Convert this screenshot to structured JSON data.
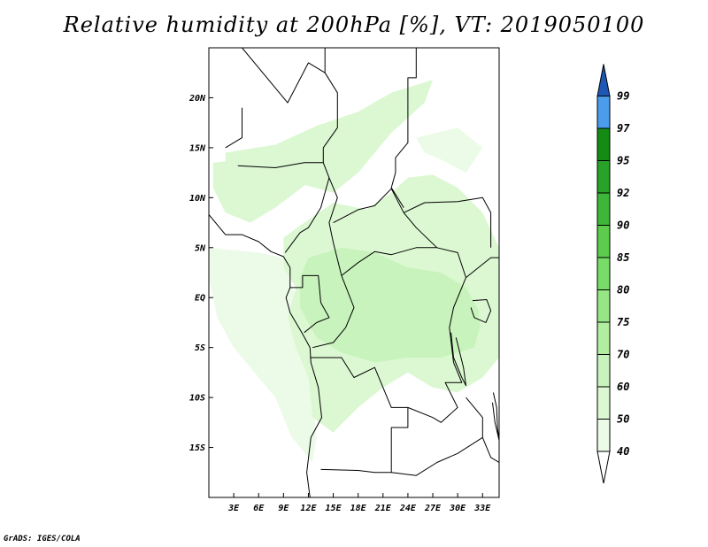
{
  "title": "Relative humidity at 200hPa [%], VT: 2019050100",
  "credit": "GrADS: IGES/COLA",
  "colors": {
    "land_border": "#000000",
    "frame": "#000000",
    "background": "#ffffff"
  },
  "chart_data": {
    "type": "heatmap",
    "variable": "Relative humidity at 200hPa",
    "units": "%",
    "valid_time": "2019050100",
    "lon_range": [
      0,
      35
    ],
    "lat_range": [
      -20,
      25
    ],
    "x_tick_labels": [
      {
        "lon": 3,
        "label": "3E"
      },
      {
        "lon": 6,
        "label": "6E"
      },
      {
        "lon": 9,
        "label": "9E"
      },
      {
        "lon": 12,
        "label": "12E"
      },
      {
        "lon": 15,
        "label": "15E"
      },
      {
        "lon": 18,
        "label": "18E"
      },
      {
        "lon": 21,
        "label": "21E"
      },
      {
        "lon": 24,
        "label": "24E"
      },
      {
        "lon": 27,
        "label": "27E"
      },
      {
        "lon": 30,
        "label": "30E"
      },
      {
        "lon": 33,
        "label": "33E"
      }
    ],
    "y_tick_labels": [
      {
        "lat": 20,
        "label": "20N"
      },
      {
        "lat": 15,
        "label": "15N"
      },
      {
        "lat": 10,
        "label": "10N"
      },
      {
        "lat": 5,
        "label": "5N"
      },
      {
        "lat": 0,
        "label": "EQ"
      },
      {
        "lat": -5,
        "label": "5S"
      },
      {
        "lat": -10,
        "label": "10S"
      },
      {
        "lat": -15,
        "label": "15S"
      }
    ],
    "colorbar": {
      "levels": [
        {
          "label": "40",
          "color": "#ecfbe8"
        },
        {
          "label": "50",
          "color": "#dcf8d2"
        },
        {
          "label": "60",
          "color": "#c8f3bc"
        },
        {
          "label": "70",
          "color": "#b1eea0"
        },
        {
          "label": "75",
          "color": "#96e685"
        },
        {
          "label": "80",
          "color": "#78dc68"
        },
        {
          "label": "85",
          "color": "#5ccc4c"
        },
        {
          "label": "90",
          "color": "#3eb738"
        },
        {
          "label": "92",
          "color": "#28a228"
        },
        {
          "label": "95",
          "color": "#148c14"
        },
        {
          "label": "97",
          "color": "#4c9cec"
        },
        {
          "label": "99",
          "color": "#2f78d8"
        }
      ],
      "top_color": "#1c58b4",
      "bottom_color": "#ffffff"
    },
    "humid_regions": [
      {
        "name": "sahel-band",
        "level": "50",
        "points": [
          [
            2,
            14.5
          ],
          [
            8,
            15.3
          ],
          [
            13,
            17.2
          ],
          [
            18,
            18.6
          ],
          [
            22,
            20.5
          ],
          [
            27,
            21.8
          ],
          [
            26,
            19.5
          ],
          [
            22,
            16.5
          ],
          [
            18,
            12.5
          ],
          [
            15,
            10.5
          ],
          [
            11,
            11.4
          ],
          [
            6,
            12.2
          ],
          [
            2,
            13.2
          ]
        ]
      },
      {
        "name": "west-africa",
        "level": "50",
        "points": [
          [
            0.5,
            13.5
          ],
          [
            4,
            13.8
          ],
          [
            8,
            13.9
          ],
          [
            11,
            14.8
          ],
          [
            13,
            16
          ],
          [
            12,
            11.5
          ],
          [
            8,
            9
          ],
          [
            5,
            7.5
          ],
          [
            2,
            8.5
          ],
          [
            0.5,
            11
          ]
        ]
      },
      {
        "name": "gulf-of-guinea",
        "level": "40",
        "points": [
          [
            0,
            5
          ],
          [
            6,
            4.5
          ],
          [
            9,
            4
          ],
          [
            10,
            1
          ],
          [
            12,
            -2
          ],
          [
            13,
            -6
          ],
          [
            12.5,
            -10
          ],
          [
            13,
            -14
          ],
          [
            12.5,
            -16.5
          ],
          [
            10,
            -14
          ],
          [
            8,
            -10
          ],
          [
            6,
            -8
          ],
          [
            3,
            -5
          ],
          [
            1,
            -2
          ],
          [
            0,
            2
          ]
        ]
      },
      {
        "name": "central-africa",
        "level": "50",
        "points": [
          [
            9,
            6
          ],
          [
            12,
            7.8
          ],
          [
            15,
            9.5
          ],
          [
            19,
            8.8
          ],
          [
            22,
            10.5
          ],
          [
            24,
            12
          ],
          [
            27,
            12.3
          ],
          [
            30,
            11
          ],
          [
            33,
            8.5
          ],
          [
            35,
            5
          ],
          [
            35,
            -6
          ],
          [
            33,
            -8
          ],
          [
            30,
            -9.5
          ],
          [
            27,
            -9
          ],
          [
            24,
            -7.5
          ],
          [
            21,
            -9
          ],
          [
            18,
            -11
          ],
          [
            15,
            -13.5
          ],
          [
            12.5,
            -12
          ],
          [
            12,
            -8
          ],
          [
            10.5,
            -5
          ],
          [
            9.5,
            -2
          ],
          [
            10.5,
            1
          ],
          [
            9,
            3
          ]
        ]
      },
      {
        "name": "congo-core",
        "level": "60",
        "points": [
          [
            12,
            4
          ],
          [
            16,
            5
          ],
          [
            20,
            4.5
          ],
          [
            24,
            3
          ],
          [
            28,
            2.5
          ],
          [
            31,
            1
          ],
          [
            33,
            -2
          ],
          [
            32,
            -5
          ],
          [
            28,
            -6
          ],
          [
            24,
            -6
          ],
          [
            20,
            -6.5
          ],
          [
            16,
            -5.5
          ],
          [
            13,
            -4
          ],
          [
            11,
            -1
          ],
          [
            11,
            2
          ]
        ]
      },
      {
        "name": "east-highlands",
        "level": "50",
        "points": [
          [
            33,
            1
          ],
          [
            35,
            0
          ],
          [
            35,
            -6
          ],
          [
            33.5,
            -5
          ],
          [
            32.5,
            -2
          ]
        ]
      },
      {
        "name": "north-dry-patch",
        "level": "40",
        "points": [
          [
            25,
            16
          ],
          [
            30,
            17
          ],
          [
            33,
            15
          ],
          [
            31,
            12.5
          ],
          [
            28,
            13.8
          ],
          [
            26,
            14.5
          ]
        ]
      }
    ],
    "borders": [
      {
        "name": "coastline-west",
        "points": [
          [
            0,
            8.3
          ],
          [
            2,
            6.3
          ],
          [
            4,
            6.3
          ],
          [
            6,
            5.6
          ],
          [
            7.5,
            4.6
          ],
          [
            9,
            4.1
          ],
          [
            9.8,
            3
          ],
          [
            9.8,
            1
          ],
          [
            9.3,
            0
          ],
          [
            9.8,
            -1.5
          ],
          [
            11.2,
            -3.5
          ],
          [
            12.2,
            -5
          ],
          [
            12.3,
            -6.5
          ],
          [
            13.2,
            -9
          ],
          [
            13.6,
            -12
          ],
          [
            12.3,
            -14
          ],
          [
            11.8,
            -17.5
          ],
          [
            12.2,
            -20
          ]
        ]
      },
      {
        "name": "sahara-lines",
        "points": [
          [
            4,
            25
          ],
          [
            9.5,
            19.5
          ],
          [
            12,
            23.5
          ],
          [
            14,
            22.5
          ],
          [
            14,
            25
          ]
        ]
      },
      {
        "name": "algeria-niger",
        "points": [
          [
            4,
            19
          ],
          [
            4,
            16
          ],
          [
            2,
            15
          ]
        ]
      },
      {
        "name": "niger-chad",
        "points": [
          [
            14,
            22.5
          ],
          [
            15.5,
            20.5
          ],
          [
            15.5,
            17
          ],
          [
            13.8,
            15
          ],
          [
            13.8,
            13.5
          ]
        ]
      },
      {
        "name": "chad-sudan",
        "points": [
          [
            24,
            19.5
          ],
          [
            24,
            15.5
          ],
          [
            22.5,
            14
          ],
          [
            22.5,
            12.5
          ],
          [
            22,
            11
          ],
          [
            23.5,
            9
          ]
        ]
      },
      {
        "name": "sudan-north",
        "points": [
          [
            24,
            19.5
          ],
          [
            24,
            22
          ],
          [
            25,
            22
          ],
          [
            25,
            25
          ]
        ]
      },
      {
        "name": "nigeria-north",
        "points": [
          [
            3.5,
            13.2
          ],
          [
            8,
            13
          ],
          [
            11.5,
            13.5
          ],
          [
            13.8,
            13.5
          ],
          [
            14.5,
            12
          ]
        ]
      },
      {
        "name": "nigeria-cameroon",
        "points": [
          [
            14.5,
            12
          ],
          [
            13.5,
            9
          ],
          [
            12,
            7
          ],
          [
            11,
            6.5
          ],
          [
            9.2,
            4.5
          ]
        ]
      },
      {
        "name": "cameroon-car",
        "points": [
          [
            14.5,
            12
          ],
          [
            15.5,
            10
          ],
          [
            14.5,
            7.5
          ],
          [
            15,
            5.5
          ],
          [
            16,
            2.2
          ]
        ]
      },
      {
        "name": "car-congo",
        "points": [
          [
            16,
            2.2
          ],
          [
            18,
            3.5
          ],
          [
            20,
            4.6
          ],
          [
            22,
            4.3
          ],
          [
            25,
            5
          ],
          [
            27.5,
            5
          ]
        ]
      },
      {
        "name": "car-sudan",
        "points": [
          [
            15,
            7.5
          ],
          [
            18,
            8.8
          ],
          [
            20,
            9.2
          ],
          [
            22,
            10.9
          ],
          [
            23.5,
            8.5
          ],
          [
            25,
            7
          ],
          [
            27.5,
            5
          ]
        ]
      },
      {
        "name": "south-sudan",
        "points": [
          [
            23.5,
            8.5
          ],
          [
            26,
            9.5
          ],
          [
            30,
            9.6
          ],
          [
            33,
            10
          ],
          [
            34,
            8.5
          ],
          [
            34,
            5
          ]
        ]
      },
      {
        "name": "gabon-congo",
        "points": [
          [
            9.8,
            1
          ],
          [
            11.3,
            1
          ],
          [
            11.3,
            2.2
          ],
          [
            13.2,
            2.2
          ],
          [
            13.5,
            -0.5
          ],
          [
            14.5,
            -2
          ],
          [
            13,
            -2.5
          ],
          [
            11.5,
            -3.5
          ]
        ]
      },
      {
        "name": "congo-drc",
        "points": [
          [
            16,
            2.2
          ],
          [
            17.5,
            -1
          ],
          [
            16.5,
            -3
          ],
          [
            15,
            -4.5
          ],
          [
            12.5,
            -5
          ]
        ]
      },
      {
        "name": "drc-angola",
        "points": [
          [
            12.2,
            -6
          ],
          [
            16,
            -6
          ],
          [
            17.5,
            -8
          ],
          [
            20,
            -7
          ],
          [
            22,
            -11
          ],
          [
            24,
            -11
          ],
          [
            24,
            -13
          ],
          [
            22,
            -13
          ],
          [
            22,
            -17.5
          ],
          [
            20,
            -17.5
          ],
          [
            18,
            -17.3
          ],
          [
            13.5,
            -17.2
          ]
        ]
      },
      {
        "name": "drc-east",
        "points": [
          [
            27.5,
            5
          ],
          [
            30,
            4.5
          ],
          [
            31,
            2
          ],
          [
            29.5,
            -1
          ],
          [
            29,
            -3
          ],
          [
            29.5,
            -6.5
          ],
          [
            30.5,
            -8.5
          ],
          [
            28.5,
            -8.5
          ],
          [
            30,
            -11
          ],
          [
            28,
            -12.5
          ],
          [
            27,
            -12
          ],
          [
            24,
            -11
          ]
        ]
      },
      {
        "name": "zambia-zimbabwe",
        "points": [
          [
            22,
            -17.5
          ],
          [
            25,
            -17.8
          ],
          [
            27.5,
            -16.5
          ],
          [
            30,
            -15.6
          ],
          [
            33,
            -14
          ],
          [
            33,
            -12
          ],
          [
            31,
            -10
          ]
        ]
      },
      {
        "name": "uganda-kenya",
        "points": [
          [
            31,
            2
          ],
          [
            34,
            4
          ],
          [
            35,
            4
          ],
          [
            35,
            -1
          ]
        ]
      },
      {
        "name": "lake-tanganyika",
        "points": [
          [
            29.2,
            -3.5
          ],
          [
            29.5,
            -6
          ],
          [
            30.5,
            -8
          ],
          [
            31,
            -8.8
          ],
          [
            30.7,
            -7
          ],
          [
            29.8,
            -4
          ]
        ]
      },
      {
        "name": "lake-victoria",
        "points": [
          [
            31.8,
            -0.3
          ],
          [
            33.5,
            -0.2
          ],
          [
            34,
            -1.3
          ],
          [
            33.4,
            -2.5
          ],
          [
            32,
            -2
          ],
          [
            31.6,
            -1
          ]
        ]
      },
      {
        "name": "lake-malawi",
        "points": [
          [
            34.3,
            -9.5
          ],
          [
            34.7,
            -11
          ],
          [
            34.8,
            -13
          ],
          [
            35,
            -14.3
          ],
          [
            34.5,
            -12.5
          ],
          [
            34.2,
            -10.5
          ]
        ]
      },
      {
        "name": "mozambique-coast",
        "points": [
          [
            33,
            -14
          ],
          [
            34,
            -16
          ],
          [
            35,
            -16.5
          ],
          [
            35,
            -20
          ]
        ]
      }
    ]
  }
}
